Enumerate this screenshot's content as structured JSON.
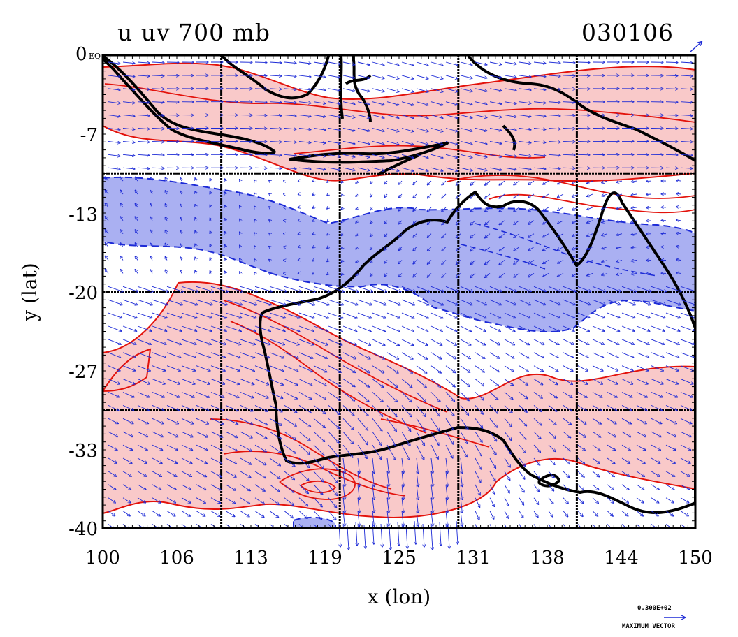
{
  "title": "u uv 700 mb",
  "date": "030106",
  "corner_label": "0 EQ",
  "xlabel": "x (lon)",
  "ylabel": "y (lat)",
  "x_ticks": [
    "100",
    "106",
    "113",
    "119",
    "125",
    "131",
    "138",
    "144",
    "150"
  ],
  "y_ticks": [
    "0",
    "-7",
    "-13",
    "-20",
    "-27",
    "-33",
    "-40"
  ],
  "vector_legend": {
    "value": "0.300E+02",
    "label": "MAXIMUM VECTOR"
  },
  "extent": {
    "lon": [
      100,
      150
    ],
    "lat": [
      -40,
      0
    ]
  },
  "grid_lons": [
    110,
    120,
    130,
    140
  ],
  "grid_lats": [
    -10,
    -20,
    -30
  ],
  "colors": {
    "positive_fill": "#f9c9c9",
    "positive_contour": "#e3120b",
    "negative_fill": "#aab0f2",
    "negative_contour": "#1c2ad6",
    "vector": "#1c2ad6",
    "coast": "#000000"
  }
}
